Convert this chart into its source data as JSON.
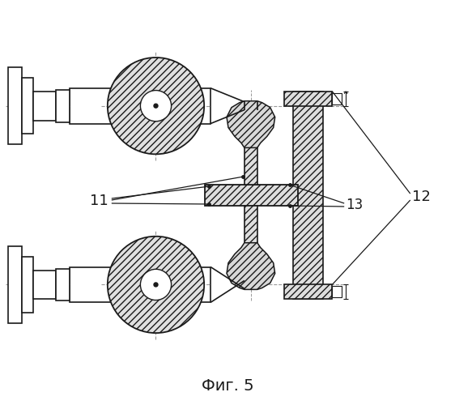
{
  "title": "Фиг. 5",
  "label_11": "11",
  "label_12": "12",
  "label_13": "13",
  "bg_color": "#ffffff",
  "line_color": "#1a1a1a",
  "center_line_color": "#999999",
  "fig_width": 5.62,
  "fig_height": 5.0,
  "dpi": 100
}
